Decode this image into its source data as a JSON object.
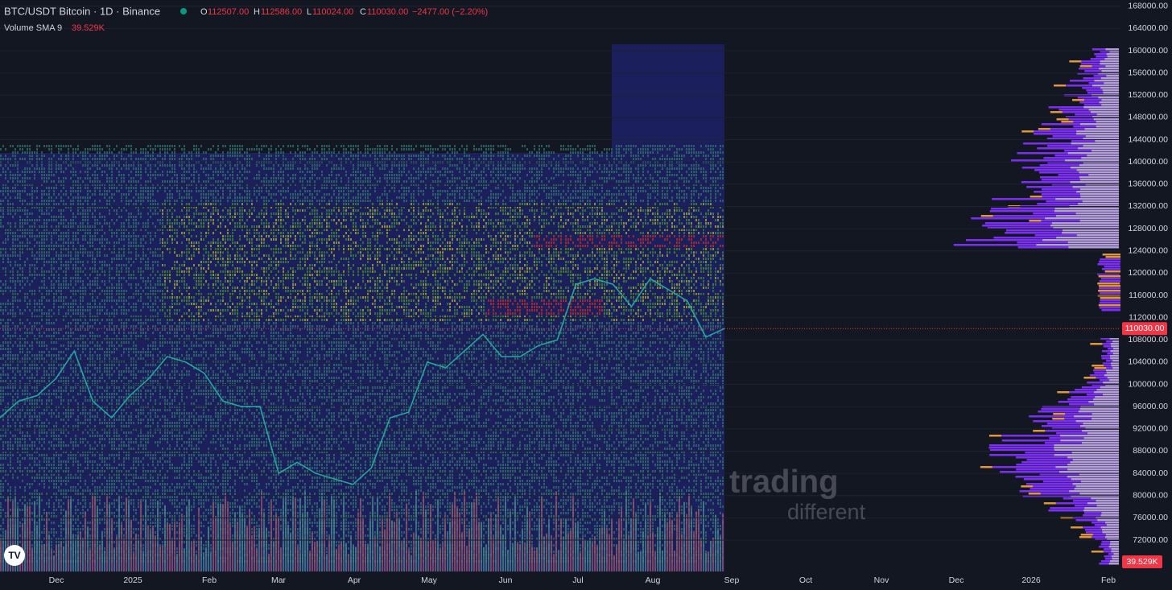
{
  "header": {
    "symbol": "BTC/USDT Bitcoin · 1D · Binance",
    "open_label": "O",
    "open": "112507.00",
    "high_label": "H",
    "high": "112586.00",
    "low_label": "L",
    "low": "110024.00",
    "close_label": "C",
    "close": "110030.00",
    "change": "−2477.00 (−2.20%)"
  },
  "indicator": {
    "name": "Volume SMA 9",
    "value": "39.529K"
  },
  "price_axis": {
    "ticks": [
      {
        "value": 168000,
        "label": "168000.00"
      },
      {
        "value": 164000,
        "label": "164000.00"
      },
      {
        "value": 160000,
        "label": "160000.00"
      },
      {
        "value": 156000,
        "label": "156000.00"
      },
      {
        "value": 152000,
        "label": "152000.00"
      },
      {
        "value": 148000,
        "label": "148000.00"
      },
      {
        "value": 144000,
        "label": "144000.00"
      },
      {
        "value": 140000,
        "label": "140000.00"
      },
      {
        "value": 136000,
        "label": "136000.00"
      },
      {
        "value": 132000,
        "label": "132000.00"
      },
      {
        "value": 128000,
        "label": "128000.00"
      },
      {
        "value": 124000,
        "label": "124000.00"
      },
      {
        "value": 120000,
        "label": "120000.00"
      },
      {
        "value": 116000,
        "label": "116000.00"
      },
      {
        "value": 112000,
        "label": "112000.00"
      },
      {
        "value": 108000,
        "label": "108000.00"
      },
      {
        "value": 104000,
        "label": "104000.00"
      },
      {
        "value": 100000,
        "label": "100000.00"
      },
      {
        "value": 96000,
        "label": "96000.00"
      },
      {
        "value": 92000,
        "label": "92000.00"
      },
      {
        "value": 88000,
        "label": "88000.00"
      },
      {
        "value": 84000,
        "label": "84000.00"
      },
      {
        "value": 80000,
        "label": "80000.00"
      },
      {
        "value": 76000,
        "label": "76000.00"
      },
      {
        "value": 72000,
        "label": "72000.00"
      }
    ]
  },
  "time_axis": {
    "labels": [
      "Dec",
      "2025",
      "Feb",
      "Mar",
      "Apr",
      "May",
      "Jun",
      "Jul",
      "Aug",
      "Sep",
      "Oct",
      "Nov",
      "Dec",
      "2026",
      "Feb"
    ]
  },
  "chart_data": {
    "type": "line",
    "color": "#26a69a",
    "values": [
      94000,
      97000,
      98000,
      101000,
      106000,
      97000,
      94000,
      98000,
      101000,
      105000,
      104000,
      102000,
      97000,
      96000,
      96000,
      84000,
      86000,
      84000,
      83000,
      82000,
      85000,
      94000,
      95000,
      104000,
      103000,
      106000,
      109000,
      105000,
      105000,
      107000,
      108000,
      118000,
      119000,
      118000,
      114000,
      119000,
      117000,
      115000,
      108500,
      110030
    ]
  },
  "last_price": {
    "value": 110030,
    "label": "110030.00"
  },
  "watermark": {
    "line1": "trading",
    "line2": "different"
  }
}
